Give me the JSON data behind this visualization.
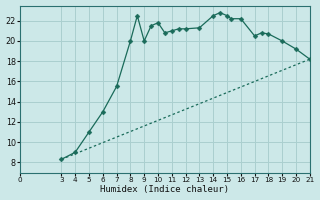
{
  "xlabel": "Humidex (Indice chaleur)",
  "bg_color": "#cce8e8",
  "grid_color": "#aacfcf",
  "line_color": "#1a6b5a",
  "xlim": [
    0,
    21
  ],
  "ylim": [
    7,
    23.5
  ],
  "xticks": [
    0,
    3,
    4,
    5,
    6,
    7,
    8,
    9,
    10,
    11,
    12,
    13,
    14,
    15,
    16,
    17,
    18,
    19,
    20,
    21
  ],
  "yticks": [
    8,
    10,
    12,
    14,
    16,
    18,
    20,
    22
  ],
  "curve1_x": [
    3,
    4,
    5,
    6,
    7,
    8,
    8.5,
    9,
    9.5,
    10,
    10.5,
    11,
    11.5,
    12,
    13,
    14,
    14.5,
    15,
    15.3,
    16,
    17,
    17.5,
    18,
    19,
    20,
    21
  ],
  "curve1_y": [
    8.3,
    9.0,
    11.0,
    13.0,
    15.5,
    20.0,
    22.5,
    20.0,
    21.5,
    21.8,
    20.8,
    21.0,
    21.2,
    21.2,
    21.3,
    22.5,
    22.8,
    22.5,
    22.2,
    22.2,
    20.5,
    20.8,
    20.7,
    20.0,
    19.2,
    18.2
  ],
  "curve2_x": [
    3,
    21
  ],
  "curve2_y": [
    8.3,
    18.2
  ],
  "marker_size": 2.5
}
